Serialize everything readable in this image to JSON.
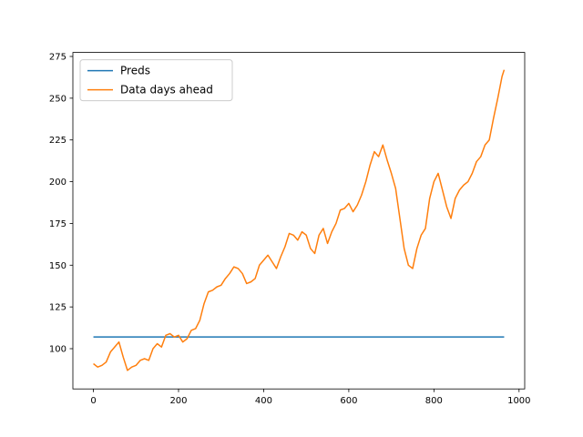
{
  "chart_data": {
    "type": "line",
    "x": [
      0,
      10,
      20,
      30,
      40,
      50,
      60,
      70,
      80,
      90,
      100,
      110,
      120,
      130,
      140,
      150,
      160,
      170,
      180,
      190,
      200,
      210,
      220,
      230,
      240,
      250,
      260,
      270,
      280,
      290,
      300,
      310,
      320,
      330,
      340,
      350,
      360,
      370,
      380,
      390,
      400,
      410,
      420,
      430,
      440,
      450,
      460,
      470,
      480,
      490,
      500,
      510,
      520,
      530,
      540,
      550,
      560,
      570,
      580,
      590,
      600,
      610,
      620,
      630,
      640,
      650,
      660,
      670,
      680,
      690,
      700,
      710,
      720,
      730,
      740,
      750,
      760,
      770,
      780,
      790,
      800,
      810,
      820,
      830,
      840,
      850,
      860,
      870,
      880,
      890,
      900,
      910,
      920,
      930,
      940,
      950,
      960,
      965
    ],
    "series": [
      {
        "name": "Preds",
        "color": "#1f77b4",
        "values": [
          107,
          107,
          107,
          107,
          107,
          107,
          107,
          107,
          107,
          107,
          107,
          107,
          107,
          107,
          107,
          107,
          107,
          107,
          107,
          107,
          107,
          107,
          107,
          107,
          107,
          107,
          107,
          107,
          107,
          107,
          107,
          107,
          107,
          107,
          107,
          107,
          107,
          107,
          107,
          107,
          107,
          107,
          107,
          107,
          107,
          107,
          107,
          107,
          107,
          107,
          107,
          107,
          107,
          107,
          107,
          107,
          107,
          107,
          107,
          107,
          107,
          107,
          107,
          107,
          107,
          107,
          107,
          107,
          107,
          107,
          107,
          107,
          107,
          107,
          107,
          107,
          107,
          107,
          107,
          107,
          107,
          107,
          107,
          107,
          107,
          107,
          107,
          107,
          107,
          107,
          107,
          107,
          107,
          107,
          107,
          107,
          107,
          107
        ]
      },
      {
        "name": "Data days ahead",
        "color": "#ff7f0e",
        "values": [
          91,
          89,
          90,
          92,
          98,
          101,
          104,
          95,
          87,
          89,
          90,
          93,
          94,
          93,
          100,
          103,
          101,
          108,
          109,
          107,
          108,
          104,
          106,
          111,
          112,
          117,
          127,
          134,
          135,
          137,
          138,
          142,
          145,
          149,
          148,
          145,
          139,
          140,
          142,
          150,
          153,
          156,
          152,
          148,
          155,
          161,
          169,
          168,
          165,
          170,
          168,
          160,
          157,
          168,
          172,
          163,
          170,
          175,
          183,
          184,
          187,
          182,
          186,
          192,
          200,
          210,
          218,
          215,
          222,
          213,
          205,
          196,
          178,
          160,
          150,
          148,
          160,
          168,
          172,
          190,
          200,
          205,
          195,
          185,
          178,
          190,
          195,
          198,
          200,
          205,
          212,
          215,
          222,
          225,
          238,
          250,
          263,
          267
        ]
      }
    ],
    "xlim": [
      -48.25,
      1013.25
    ],
    "xticks": [
      0,
      200,
      400,
      600,
      800,
      1000
    ],
    "ylim": [
      75.9,
      277.4
    ],
    "yticks": [
      100,
      125,
      150,
      175,
      200,
      225,
      250,
      275
    ],
    "legend": "upper left"
  }
}
